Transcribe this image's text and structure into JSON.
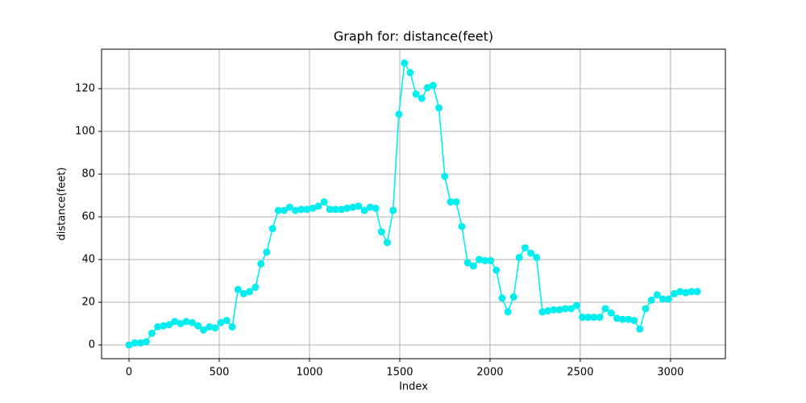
{
  "chart_data": {
    "type": "line",
    "title": "Graph for: distance(feet)",
    "x_label": "Index",
    "y_label": "distance(feet)",
    "x": [
      0,
      32,
      64,
      95,
      127,
      159,
      191,
      223,
      254,
      286,
      318,
      350,
      382,
      413,
      445,
      477,
      509,
      541,
      572,
      604,
      636,
      668,
      700,
      731,
      763,
      795,
      827,
      859,
      890,
      922,
      954,
      986,
      1018,
      1049,
      1081,
      1113,
      1145,
      1177,
      1208,
      1240,
      1272,
      1304,
      1336,
      1367,
      1399,
      1431,
      1463,
      1495,
      1526,
      1558,
      1590,
      1622,
      1654,
      1685,
      1717,
      1749,
      1781,
      1813,
      1844,
      1876,
      1908,
      1940,
      1972,
      2003,
      2035,
      2067,
      2099,
      2131,
      2162,
      2194,
      2226,
      2258,
      2290,
      2321,
      2353,
      2385,
      2417,
      2449,
      2480,
      2512,
      2544,
      2576,
      2608,
      2639,
      2671,
      2703,
      2735,
      2767,
      2798,
      2830,
      2862,
      2894,
      2926,
      2957,
      2989,
      3021,
      3053,
      3085,
      3116,
      3148
    ],
    "series": [
      {
        "name": "distance(feet)",
        "color": "#00eeee",
        "values": [
          0,
          1,
          1,
          1.5,
          5.5,
          8.5,
          9,
          9.5,
          11,
          10,
          11,
          10.5,
          9,
          7,
          8.5,
          8,
          10.5,
          11.5,
          8.5,
          26,
          24,
          25,
          27,
          38,
          43.5,
          54.5,
          63,
          63,
          64.5,
          63,
          63.5,
          63.5,
          64,
          65,
          67,
          63.5,
          63.5,
          63.5,
          64,
          64.5,
          65,
          63,
          64.5,
          64,
          53,
          48,
          63,
          108,
          132,
          127.5,
          117.5,
          115.5,
          120.5,
          121.5,
          111,
          79,
          67,
          67,
          55.5,
          38.5,
          37,
          40,
          39.5,
          39.5,
          35,
          22,
          15.5,
          22.5,
          41,
          45.5,
          43,
          41,
          15.5,
          16,
          16.5,
          16.5,
          17,
          17,
          18.5,
          13,
          13,
          13,
          13,
          17,
          15,
          12.5,
          12,
          12,
          11.5,
          7.5,
          17,
          21,
          23.5,
          21.5,
          21.5,
          24,
          25,
          24.5,
          25,
          25
        ]
      }
    ],
    "xlim": [
      -152,
      3304
    ],
    "ylim": [
      -6.4,
      138.5
    ],
    "xticks": [
      0,
      500,
      1000,
      1500,
      2000,
      2500,
      3000
    ],
    "yticks": [
      0,
      20,
      40,
      60,
      80,
      100,
      120
    ],
    "grid": true
  }
}
